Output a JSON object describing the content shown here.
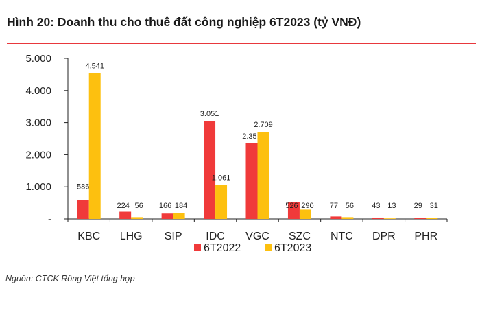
{
  "title": "Hình 20: Doanh thu cho thuê đất công nghiệp 6T2023 (tỷ VNĐ)",
  "source": "Nguồn: CTCK Rồng Việt tổng hợp",
  "colors": {
    "series1": "#f03a3a",
    "series2": "#fdc00f",
    "rule": "#e8383d"
  },
  "chart_data": {
    "type": "bar",
    "title": "Hình 20: Doanh thu cho thuê đất công nghiệp 6T2023 (tỷ VNĐ)",
    "categories": [
      "KBC",
      "LHG",
      "SIP",
      "IDC",
      "VGC",
      "SZC",
      "NTC",
      "DPR",
      "PHR"
    ],
    "series": [
      {
        "name": "6T2022",
        "values": [
          586,
          224,
          166,
          3051,
          2351,
          526,
          77,
          43,
          29
        ],
        "labels": [
          "586",
          "224",
          "166",
          "3.051",
          "2.351",
          "526",
          "77",
          "43",
          "29"
        ]
      },
      {
        "name": "6T2023",
        "values": [
          4541,
          56,
          184,
          1061,
          2709,
          290,
          56,
          13,
          31
        ],
        "labels": [
          "4.541",
          "56",
          "184",
          "1.061",
          "2.709",
          "290",
          "56",
          "13",
          "31"
        ]
      }
    ],
    "ylim": [
      0,
      5000
    ],
    "yticks": [
      0,
      1000,
      2000,
      3000,
      4000,
      5000
    ],
    "ytick_labels": [
      "-",
      "1.000",
      "2.000",
      "3.000",
      "4.000",
      "5.000"
    ],
    "grid": false,
    "legend_position": "bottom",
    "xlabel": "",
    "ylabel": ""
  }
}
